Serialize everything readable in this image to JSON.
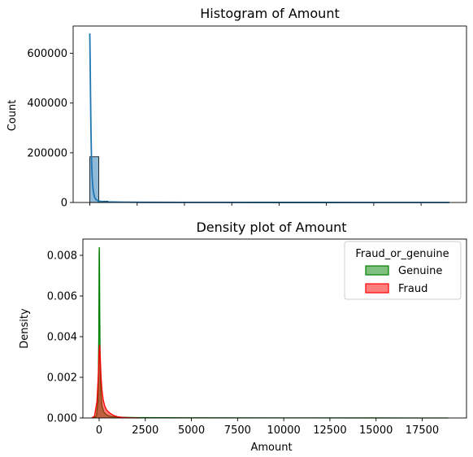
{
  "chart_data": [
    {
      "type": "bar",
      "title": "Histogram of Amount",
      "xlabel": "",
      "ylabel": "Count",
      "xlim": [
        -880,
        19900
      ],
      "ylim": [
        0,
        710000
      ],
      "yticks": [
        {
          "value": 0,
          "label": "0"
        },
        {
          "value": 200000,
          "label": "200000"
        },
        {
          "value": 400000,
          "label": "400000"
        },
        {
          "value": 600000,
          "label": "600000"
        }
      ],
      "xticks": [
        0,
        2500,
        5000,
        7500,
        10000,
        12500,
        15000,
        17500
      ],
      "x_tick_labels_shown": false,
      "bars": [
        {
          "x0": 0,
          "x1": 475,
          "count": 184000
        },
        {
          "x0": 475,
          "x1": 950,
          "count": 5500
        },
        {
          "x0": 950,
          "x1": 1425,
          "count": 1800
        },
        {
          "x0": 1425,
          "x1": 1900,
          "count": 900
        }
      ],
      "kde": {
        "x": [
          0,
          20,
          40,
          60,
          80,
          100,
          130,
          160,
          200,
          250,
          300,
          400,
          500,
          700,
          1000,
          1500,
          2000,
          3000,
          5000,
          10000,
          15000,
          19000
        ],
        "y": [
          680000,
          560000,
          420000,
          300000,
          210000,
          150000,
          95000,
          62000,
          38000,
          22000,
          14000,
          8000,
          5200,
          3200,
          2200,
          1500,
          1100,
          700,
          400,
          200,
          100,
          50
        ]
      },
      "colors": {
        "bar_fill": "#1f77b4",
        "bar_opacity": 0.5,
        "kde_line": "#1f77b4"
      }
    },
    {
      "type": "area",
      "title": "Density plot of Amount",
      "xlabel": "Amount",
      "ylabel": "Density",
      "xlim": [
        -880,
        19900
      ],
      "ylim": [
        0,
        0.0088
      ],
      "yticks": [
        {
          "value": 0,
          "label": "0.000"
        },
        {
          "value": 0.002,
          "label": "0.002"
        },
        {
          "value": 0.004,
          "label": "0.004"
        },
        {
          "value": 0.006,
          "label": "0.006"
        },
        {
          "value": 0.008,
          "label": "0.008"
        }
      ],
      "xticks": [
        {
          "value": 0,
          "label": "0"
        },
        {
          "value": 2500,
          "label": "2500"
        },
        {
          "value": 5000,
          "label": "5000"
        },
        {
          "value": 7500,
          "label": "7500"
        },
        {
          "value": 10000,
          "label": "10000"
        },
        {
          "value": 12500,
          "label": "12500"
        },
        {
          "value": 15000,
          "label": "15000"
        },
        {
          "value": 17500,
          "label": "17500"
        }
      ],
      "legend": {
        "title": "Fraud_or_genuine",
        "position": "top-right"
      },
      "series": [
        {
          "name": "Genuine",
          "color": "#008000",
          "x": [
            -300,
            -150,
            -60,
            -20,
            0,
            10,
            20,
            35,
            60,
            100,
            150,
            250,
            400,
            600,
            1000,
            2000,
            5000,
            10000,
            15000,
            18900
          ],
          "y": [
            0,
            0.0001,
            0.0008,
            0.004,
            0.0082,
            0.0084,
            0.0075,
            0.005,
            0.0025,
            0.0012,
            0.0006,
            0.0003,
            0.00015,
            8e-05,
            4e-05,
            2e-05,
            1e-05,
            5e-06,
            2e-06,
            0
          ]
        },
        {
          "name": "Fraud",
          "color": "#ff0000",
          "x": [
            -400,
            -250,
            -120,
            -40,
            0,
            30,
            60,
            100,
            150,
            220,
            300,
            400,
            500,
            650,
            800,
            1000,
            1300,
            1700,
            2200
          ],
          "y": [
            0,
            0.0001,
            0.0008,
            0.0022,
            0.0033,
            0.0036,
            0.003,
            0.0021,
            0.0014,
            0.0009,
            0.0006,
            0.0004,
            0.0003,
            0.0002,
            0.00012,
            6e-05,
            3e-05,
            1e-05,
            0
          ]
        }
      ]
    }
  ]
}
